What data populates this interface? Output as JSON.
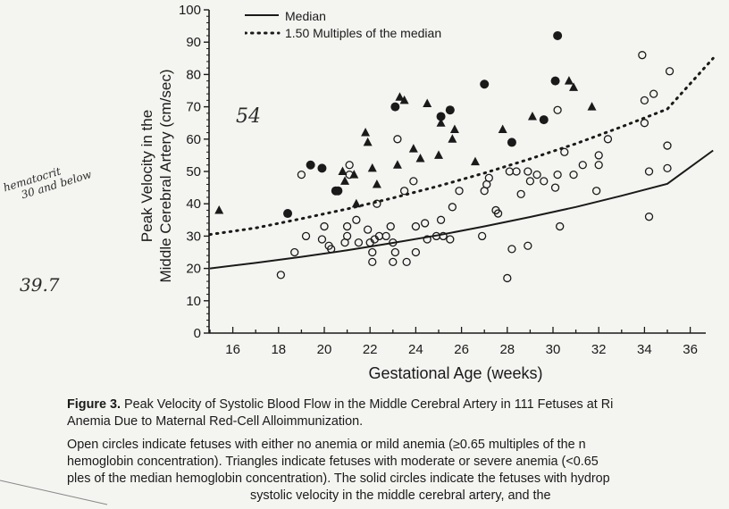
{
  "chart_data": {
    "type": "scatter",
    "title": "",
    "xlabel": "Gestational Age (weeks)",
    "ylabel_line1": "Peak Velocity in the",
    "ylabel_line2": "Middle Cerebral Artery (cm/sec)",
    "xlim": [
      15,
      37
    ],
    "ylim": [
      0,
      100
    ],
    "x_ticks": [
      16,
      18,
      20,
      22,
      24,
      26,
      28,
      30,
      32,
      34,
      36
    ],
    "y_ticks": [
      0,
      10,
      20,
      30,
      40,
      50,
      60,
      70,
      80,
      90,
      100
    ],
    "legend_position": "top",
    "grid": false,
    "series": [
      {
        "name": "Median",
        "style": "solid-line",
        "x": [
          15,
          17,
          19,
          21,
          23,
          25,
          27,
          29,
          31,
          33,
          35,
          37
        ],
        "y": [
          20,
          21.7,
          23.6,
          25.6,
          27.9,
          30.3,
          33,
          35.9,
          39,
          42.5,
          46.2,
          56.5
        ]
      },
      {
        "name": "1.50 Multiples of the median",
        "style": "dotted-line",
        "x": [
          15,
          17,
          19,
          21,
          23,
          25,
          27,
          29,
          31,
          33,
          35,
          37
        ],
        "y": [
          30.5,
          32.5,
          35.4,
          38.4,
          41.8,
          45.5,
          49.5,
          53.9,
          58.6,
          63.8,
          69.3,
          85
        ]
      },
      {
        "name": "Open circles",
        "style": "open-circle",
        "points": [
          [
            18.1,
            18
          ],
          [
            18.7,
            25
          ],
          [
            19,
            49
          ],
          [
            19.2,
            30
          ],
          [
            19.9,
            29
          ],
          [
            20,
            33
          ],
          [
            20.2,
            27
          ],
          [
            20.3,
            26
          ],
          [
            20.9,
            28
          ],
          [
            21,
            30
          ],
          [
            21,
            33
          ],
          [
            21.1,
            49
          ],
          [
            21.1,
            52
          ],
          [
            21.4,
            35
          ],
          [
            21.5,
            28
          ],
          [
            21.9,
            32
          ],
          [
            22,
            28
          ],
          [
            22.1,
            25
          ],
          [
            22.1,
            22
          ],
          [
            22.2,
            29
          ],
          [
            22.3,
            40
          ],
          [
            22.4,
            30
          ],
          [
            22.7,
            30
          ],
          [
            22.9,
            33
          ],
          [
            23,
            28
          ],
          [
            23,
            22
          ],
          [
            23.1,
            25
          ],
          [
            23.2,
            60
          ],
          [
            23.5,
            44
          ],
          [
            23.6,
            22
          ],
          [
            23.9,
            47
          ],
          [
            24,
            25
          ],
          [
            24,
            33
          ],
          [
            24.4,
            34
          ],
          [
            24.5,
            29
          ],
          [
            24.9,
            30
          ],
          [
            25.1,
            35
          ],
          [
            25.2,
            30
          ],
          [
            25.5,
            29
          ],
          [
            25.6,
            39
          ],
          [
            25.9,
            44
          ],
          [
            26.9,
            30
          ],
          [
            27,
            44
          ],
          [
            27.1,
            46
          ],
          [
            27.2,
            48
          ],
          [
            27.5,
            38
          ],
          [
            27.6,
            37
          ],
          [
            28.1,
            50
          ],
          [
            28,
            17
          ],
          [
            28.2,
            26
          ],
          [
            28.4,
            50
          ],
          [
            28.6,
            43
          ],
          [
            28.9,
            27
          ],
          [
            28.9,
            50
          ],
          [
            29,
            47
          ],
          [
            29.3,
            49
          ],
          [
            29.6,
            47
          ],
          [
            30.1,
            45
          ],
          [
            30.2,
            49
          ],
          [
            30.2,
            69
          ],
          [
            30.3,
            33
          ],
          [
            30.5,
            56
          ],
          [
            30.9,
            49
          ],
          [
            31.3,
            52
          ],
          [
            31.9,
            44
          ],
          [
            32,
            55
          ],
          [
            32,
            52
          ],
          [
            32.4,
            60
          ],
          [
            33.9,
            86
          ],
          [
            34,
            65
          ],
          [
            34,
            72
          ],
          [
            34.2,
            50
          ],
          [
            34.2,
            36
          ],
          [
            34.4,
            74
          ],
          [
            35,
            51
          ],
          [
            35,
            58
          ],
          [
            35.1,
            81
          ]
        ]
      },
      {
        "name": "Triangles",
        "style": "triangle",
        "points": [
          [
            15.4,
            38
          ],
          [
            20.8,
            50
          ],
          [
            20.9,
            47
          ],
          [
            21.3,
            49
          ],
          [
            21.4,
            40
          ],
          [
            21.8,
            62
          ],
          [
            21.9,
            59
          ],
          [
            22.1,
            51
          ],
          [
            22.3,
            46
          ],
          [
            23.2,
            52
          ],
          [
            23.3,
            73
          ],
          [
            23.5,
            72
          ],
          [
            23.9,
            57
          ],
          [
            24.2,
            54
          ],
          [
            24.5,
            71
          ],
          [
            25,
            55
          ],
          [
            25.1,
            65
          ],
          [
            25.6,
            60
          ],
          [
            25.7,
            63
          ],
          [
            26.6,
            53
          ],
          [
            27.8,
            63
          ],
          [
            29.1,
            67
          ],
          [
            30.7,
            78
          ],
          [
            30.9,
            76
          ],
          [
            31.7,
            70
          ]
        ]
      },
      {
        "name": "Solid circles",
        "style": "solid-circle",
        "points": [
          [
            18.4,
            37
          ],
          [
            19.4,
            52
          ],
          [
            19.9,
            51
          ],
          [
            20.5,
            44
          ],
          [
            20.6,
            44
          ],
          [
            23.1,
            70
          ],
          [
            25.1,
            67
          ],
          [
            25.5,
            69
          ],
          [
            27,
            77
          ],
          [
            28.2,
            59
          ],
          [
            29.6,
            66
          ],
          [
            30.1,
            78
          ],
          [
            30.2,
            92
          ]
        ]
      }
    ]
  },
  "caption": {
    "figure_label": "Figure 3.",
    "line1_rest": " Peak Velocity of Systolic Blood Flow in the Middle Cerebral Artery in 111 Fetuses at Ri",
    "line2": "Anemia Due to Maternal Red-Cell Alloimmunization.",
    "line3": "Open circles indicate fetuses with either no anemia or mild anemia (≥0.65 multiples of the n",
    "line4": "hemoglobin concentration). Triangles indicate fetuses with moderate or severe anemia (<0.65",
    "line5": "ples of the median hemoglobin concentration). The solid circles indicate the fetuses with hydrop",
    "line6": "systolic velocity in the middle cerebral artery, and the"
  },
  "handwritten": {
    "note_54": "54",
    "note_hematocrit_1": "hematocrit",
    "note_hematocrit_2": "30 and below",
    "note_39_7": "39.7"
  },
  "colors": {
    "ink": "#1a1a1a",
    "paper": "#f4f4f1"
  }
}
